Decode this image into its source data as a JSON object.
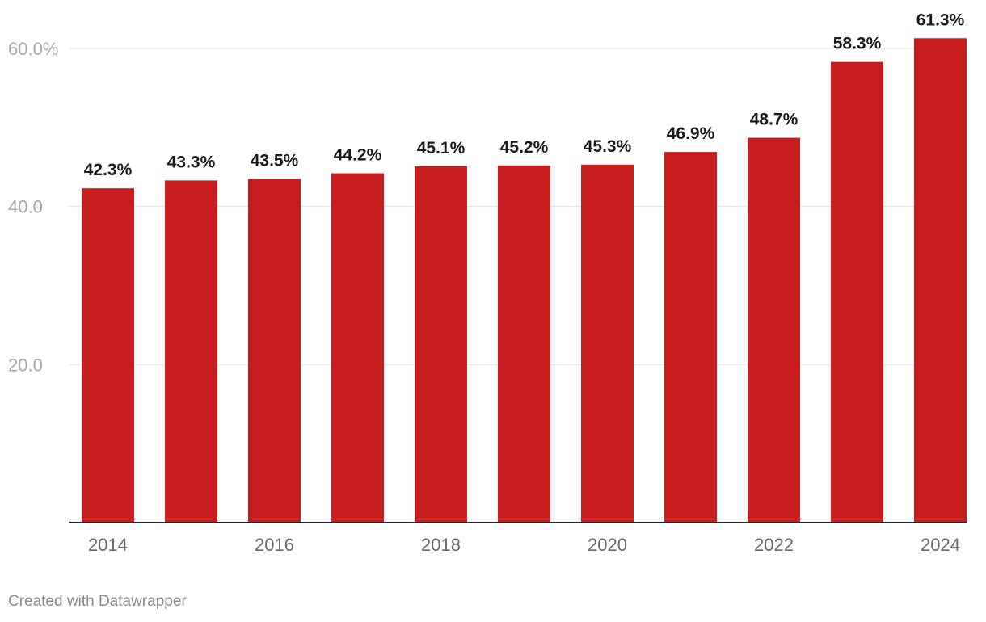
{
  "chart_data": {
    "type": "bar",
    "categories": [
      "2014",
      "2015",
      "2016",
      "2017",
      "2018",
      "2019",
      "2020",
      "2021",
      "2022",
      "2023",
      "2024"
    ],
    "values": [
      42.3,
      43.3,
      43.5,
      44.2,
      45.1,
      45.2,
      45.3,
      46.9,
      48.7,
      58.3,
      61.3
    ],
    "value_labels": [
      "42.3%",
      "43.3%",
      "43.5%",
      "44.2%",
      "45.1%",
      "45.2%",
      "45.3%",
      "46.9%",
      "48.7%",
      "58.3%",
      "61.3%"
    ],
    "x_tick_labels": [
      "2014",
      "",
      "2016",
      "",
      "2018",
      "",
      "2020",
      "",
      "2022",
      "",
      "2024"
    ],
    "y_ticks": [
      20,
      40,
      60
    ],
    "y_tick_labels": [
      "20.0",
      "40.0",
      "60.0%"
    ],
    "ylim": [
      0,
      60
    ],
    "grid": true,
    "bar_color": "#c81d1e"
  },
  "footer": {
    "credit": "Created with Datawrapper"
  }
}
